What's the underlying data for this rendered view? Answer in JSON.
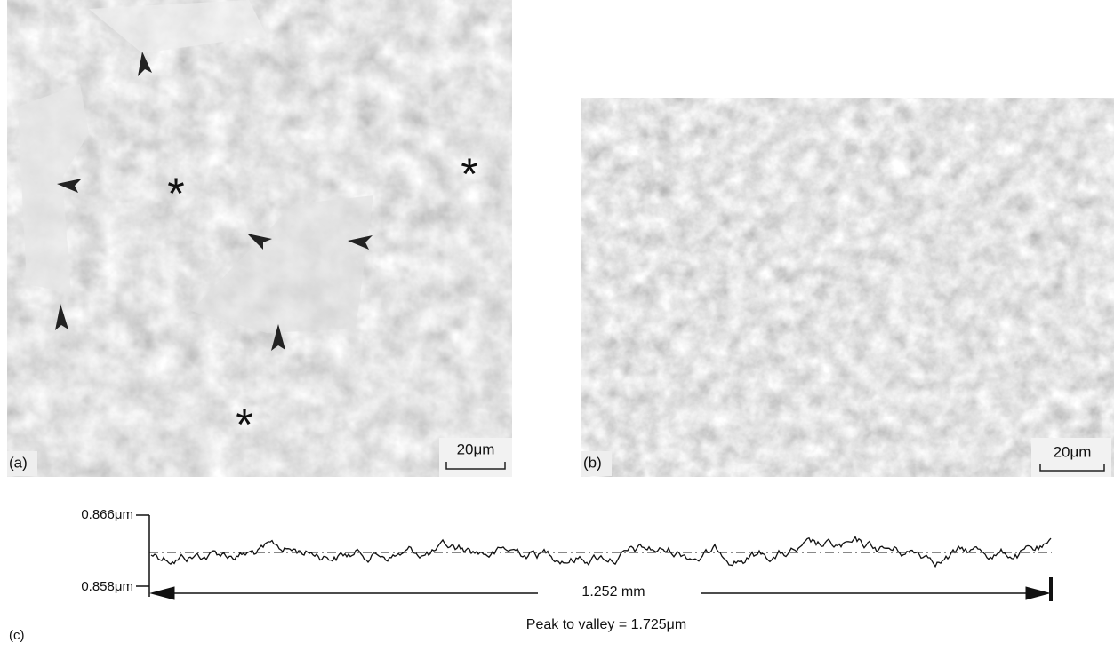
{
  "panels": [
    {
      "label": "(a)",
      "scale_bar": "20μm"
    },
    {
      "label": "(b)",
      "scale_bar": "20μm"
    }
  ],
  "profile": {
    "label": "(c)",
    "y_top_label": "0.866μm",
    "y_bottom_label": "0.858μm",
    "length": "1.252 mm",
    "caption": "Peak to valley = 1.725μm"
  }
}
